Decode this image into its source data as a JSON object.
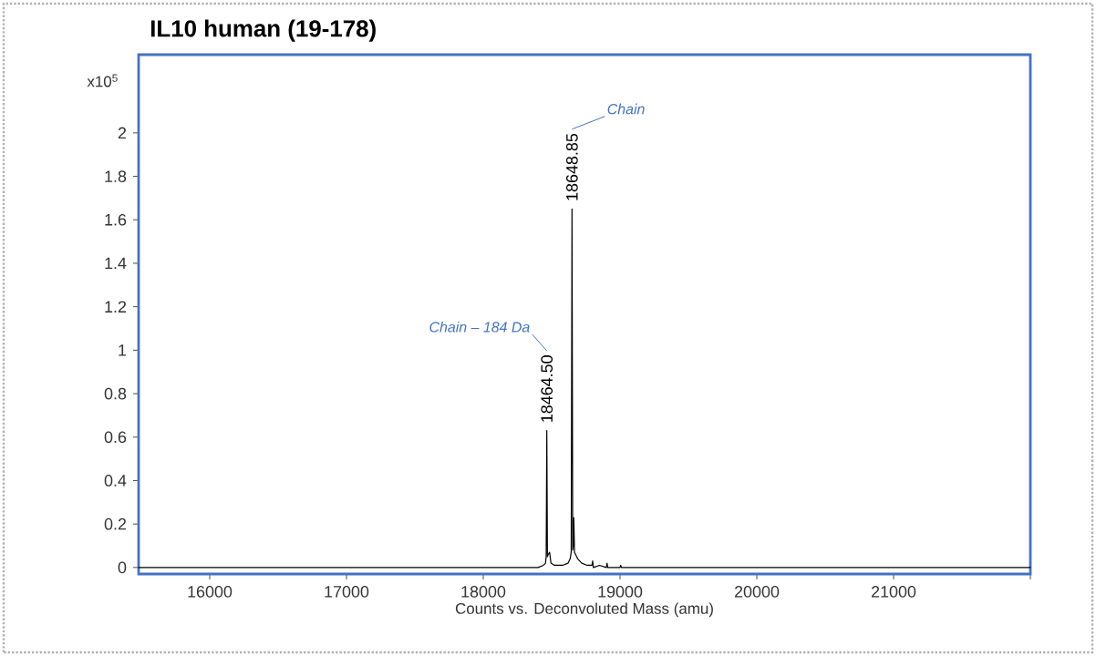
{
  "chart_data": {
    "type": "line",
    "title": "IL10 human (19-178)",
    "xlabel": "Counts vs. Deconvoluted Mass (amu)",
    "ylabel": "x10$^{5}$",
    "annotations": [
      {
        "text": "18464.50",
        "x": 18464.5,
        "y": 0.63
      },
      {
        "text": "18648.85",
        "x": 18648.85,
        "y": 1.65
      },
      "Chain – 184 Da",
      "Chain"
    ],
    "x": [
      15480,
      16000,
      17000,
      18000,
      18400,
      18440,
      18455,
      18460,
      18464.5,
      18469,
      18475,
      18485,
      18495,
      18520,
      18580,
      18620,
      18635,
      18643,
      18648.85,
      18654,
      18658,
      18662,
      18667,
      18675,
      18690,
      18720,
      18760,
      18795,
      18800,
      18805,
      18850,
      18900,
      18905,
      18910,
      19000,
      19005,
      19010,
      19500,
      20000,
      21000,
      22000
    ],
    "values": [
      0,
      0,
      0,
      0,
      0,
      0.01,
      0.02,
      0.05,
      0.63,
      0.05,
      0.06,
      0.07,
      0.02,
      0.01,
      0.01,
      0.02,
      0.04,
      0.07,
      1.65,
      0.08,
      0.1,
      0.23,
      0.07,
      0.06,
      0.04,
      0.02,
      0.01,
      0.01,
      0.03,
      0.0,
      0.01,
      0.0,
      0.02,
      0.0,
      0.0,
      0.01,
      0.0,
      0,
      0,
      0,
      0
    ],
    "color": "#000000",
    "xlim": [
      15480,
      22000
    ],
    "ylim": [
      -0.03,
      2.36
    ],
    "xticks": [
      16000,
      17000,
      18000,
      19000,
      20000,
      21000,
      {
        "value": 22000,
        "label": null
      }
    ],
    "yticks": [
      0,
      0.2,
      0.4,
      0.6,
      0.8,
      1,
      1.2,
      1.4,
      1.6,
      1.8,
      2
    ]
  }
}
